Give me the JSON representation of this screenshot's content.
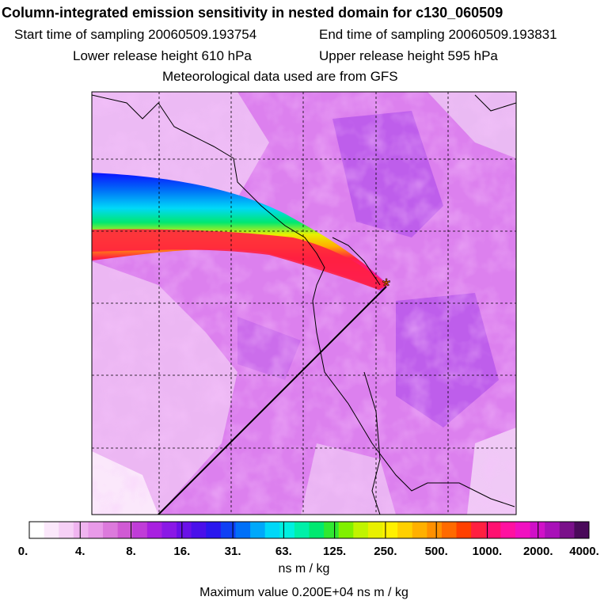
{
  "header": {
    "title": "Column-integrated emission sensitivity in nested domain for c130_060509",
    "start_label": "Start time of sampling 20060509.193754",
    "end_label": "End time of sampling 20060509.193831",
    "lower_label": "Lower release height  610 hPa",
    "upper_label": "Upper release height  595 hPa",
    "met_label": "Meteorological data used are from GFS"
  },
  "chart_data": {
    "type": "heatmap",
    "title": "Column-integrated emission sensitivity in nested domain for c130_060509",
    "colorbar": {
      "tick_labels": [
        "0.",
        "4.",
        "8.",
        "16.",
        "31.",
        "63.",
        "125.",
        "250.",
        "500.",
        "1000.",
        "2000.",
        "4000."
      ],
      "colors": [
        "#ffffff",
        "#fbe8fb",
        "#f6d0f6",
        "#f0b4f0",
        "#e89ae8",
        "#dc7adc",
        "#d05ad4",
        "#c03cd8",
        "#a820e0",
        "#8a18e6",
        "#6a10e8",
        "#4a10ea",
        "#2a18ee",
        "#1040f4",
        "#0070f8",
        "#00a8fa",
        "#00d8f8",
        "#00f0e0",
        "#00f0a8",
        "#00e870",
        "#30e830",
        "#80f000",
        "#c0f400",
        "#e8f000",
        "#fff000",
        "#ffd000",
        "#ffb000",
        "#ff9000",
        "#ff6a00",
        "#ff4000",
        "#ff2040",
        "#ff1070",
        "#ff10a0",
        "#f010c0",
        "#d010c8",
        "#a810b8",
        "#7a108a",
        "#4a0a5a"
      ],
      "units": "ns m / kg"
    },
    "max_value_text": "Maximum value  0.200E+04 ns m / kg",
    "release_point_symbol": "*"
  },
  "palette": {
    "background_field": "#d46cea",
    "light_field": "#f0c8f4",
    "coast": "#000000",
    "grid": "#000000"
  }
}
